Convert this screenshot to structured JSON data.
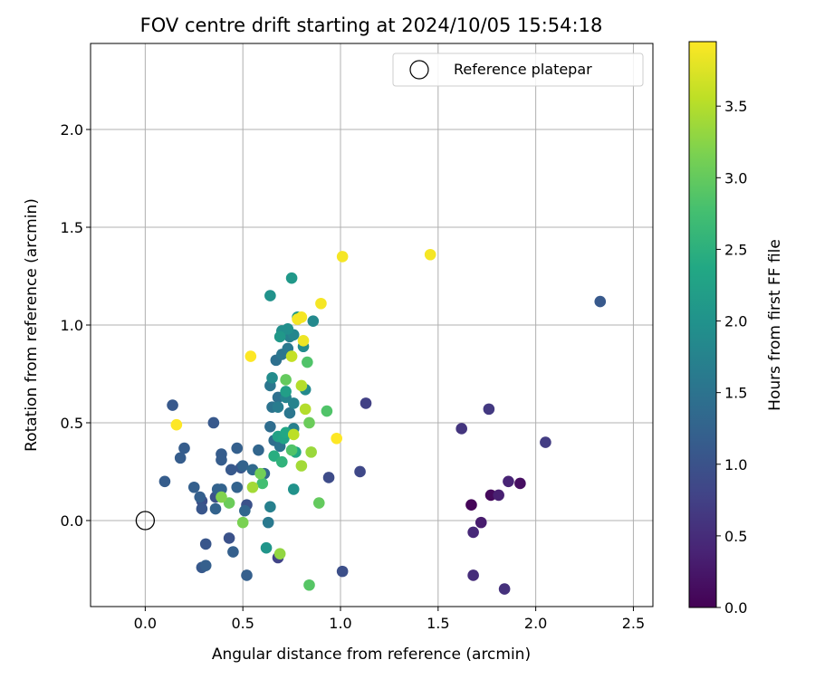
{
  "chart_data": {
    "type": "scatter",
    "title": "FOV centre drift starting at 2024/10/05 15:54:18",
    "xlabel": "Angular distance from reference (arcmin)",
    "ylabel": "Rotation from reference (arcmin)",
    "xlim": [
      -0.28,
      2.6
    ],
    "ylim": [
      -0.44,
      2.44
    ],
    "x_ticks": [
      0.0,
      0.5,
      1.0,
      1.5,
      2.0,
      2.5
    ],
    "x_tick_labels": [
      "0.0",
      "0.5",
      "1.0",
      "1.5",
      "2.0",
      "2.5"
    ],
    "y_ticks": [
      0.0,
      0.5,
      1.0,
      1.5,
      2.0
    ],
    "y_tick_labels": [
      "0.0",
      "0.5",
      "1.0",
      "1.5",
      "2.0"
    ],
    "grid": true,
    "legend": {
      "placement": "top-right",
      "entries": [
        {
          "label": "Reference platepar",
          "marker": "open-circle"
        }
      ]
    },
    "reference_point": {
      "x": 0.0,
      "y": 0.0
    },
    "colorbar": {
      "label": "Hours from first FF file",
      "colormap": "viridis",
      "range": [
        0.0,
        3.95
      ],
      "ticks": [
        0.0,
        0.5,
        1.0,
        1.5,
        2.0,
        2.5,
        3.0,
        3.5
      ],
      "tick_labels": [
        "0.0",
        "0.5",
        "1.0",
        "1.5",
        "2.0",
        "2.5",
        "3.0",
        "3.5"
      ]
    },
    "points": [
      {
        "x": 1.67,
        "y": 0.08,
        "c": 0.05
      },
      {
        "x": 1.77,
        "y": 0.13,
        "c": 0.1
      },
      {
        "x": 1.92,
        "y": 0.19,
        "c": 0.15
      },
      {
        "x": 1.72,
        "y": -0.01,
        "c": 0.3
      },
      {
        "x": 1.81,
        "y": 0.13,
        "c": 0.35
      },
      {
        "x": 1.86,
        "y": 0.2,
        "c": 0.4
      },
      {
        "x": 1.68,
        "y": -0.06,
        "c": 0.45
      },
      {
        "x": 1.68,
        "y": -0.28,
        "c": 0.5
      },
      {
        "x": 1.84,
        "y": -0.35,
        "c": 0.55
      },
      {
        "x": 1.62,
        "y": 0.47,
        "c": 0.6
      },
      {
        "x": 1.76,
        "y": 0.57,
        "c": 0.65
      },
      {
        "x": 2.05,
        "y": 0.4,
        "c": 0.7
      },
      {
        "x": 1.13,
        "y": 0.6,
        "c": 0.75
      },
      {
        "x": 0.68,
        "y": -0.19,
        "c": 0.8
      },
      {
        "x": 1.1,
        "y": 0.25,
        "c": 0.85
      },
      {
        "x": 0.94,
        "y": 0.22,
        "c": 0.9
      },
      {
        "x": 1.01,
        "y": -0.26,
        "c": 0.95
      },
      {
        "x": 0.29,
        "y": 0.1,
        "c": 0.95
      },
      {
        "x": 0.36,
        "y": 0.12,
        "c": 1.0
      },
      {
        "x": 0.43,
        "y": -0.09,
        "c": 1.0
      },
      {
        "x": 0.52,
        "y": 0.08,
        "c": 1.0
      },
      {
        "x": 0.49,
        "y": 0.27,
        "c": 1.05
      },
      {
        "x": 0.31,
        "y": -0.12,
        "c": 1.05
      },
      {
        "x": 0.29,
        "y": 0.06,
        "c": 1.05
      },
      {
        "x": 2.33,
        "y": 1.12,
        "c": 1.1
      },
      {
        "x": 0.44,
        "y": 0.26,
        "c": 1.1
      },
      {
        "x": 0.29,
        "y": -0.24,
        "c": 1.1
      },
      {
        "x": 0.14,
        "y": 0.59,
        "c": 1.1
      },
      {
        "x": 0.35,
        "y": 0.5,
        "c": 1.1
      },
      {
        "x": 0.1,
        "y": 0.2,
        "c": 1.15
      },
      {
        "x": 0.2,
        "y": 0.37,
        "c": 1.15
      },
      {
        "x": 0.18,
        "y": 0.32,
        "c": 1.15
      },
      {
        "x": 0.39,
        "y": 0.34,
        "c": 1.15
      },
      {
        "x": 0.39,
        "y": 0.31,
        "c": 1.15
      },
      {
        "x": 0.47,
        "y": 0.37,
        "c": 1.2
      },
      {
        "x": 0.45,
        "y": -0.16,
        "c": 1.2
      },
      {
        "x": 0.31,
        "y": -0.23,
        "c": 1.2
      },
      {
        "x": 0.52,
        "y": -0.28,
        "c": 1.2
      },
      {
        "x": 0.25,
        "y": 0.17,
        "c": 1.2
      },
      {
        "x": 0.28,
        "y": 0.12,
        "c": 1.2
      },
      {
        "x": 0.37,
        "y": 0.16,
        "c": 1.25
      },
      {
        "x": 0.39,
        "y": 0.16,
        "c": 1.25
      },
      {
        "x": 0.36,
        "y": 0.06,
        "c": 1.25
      },
      {
        "x": 0.47,
        "y": 0.17,
        "c": 1.25
      },
      {
        "x": 0.5,
        "y": 0.28,
        "c": 1.25
      },
      {
        "x": 0.51,
        "y": 0.05,
        "c": 1.3
      },
      {
        "x": 0.58,
        "y": 0.36,
        "c": 1.3
      },
      {
        "x": 0.61,
        "y": 0.24,
        "c": 1.3
      },
      {
        "x": 0.55,
        "y": 0.26,
        "c": 1.35
      },
      {
        "x": 0.64,
        "y": 0.48,
        "c": 1.4
      },
      {
        "x": 0.66,
        "y": 0.41,
        "c": 1.4
      },
      {
        "x": 0.68,
        "y": 0.63,
        "c": 1.45
      },
      {
        "x": 0.67,
        "y": 0.82,
        "c": 1.45
      },
      {
        "x": 0.69,
        "y": 0.38,
        "c": 1.5
      },
      {
        "x": 0.65,
        "y": 0.58,
        "c": 1.5
      },
      {
        "x": 0.7,
        "y": 0.85,
        "c": 1.55
      },
      {
        "x": 0.74,
        "y": 0.55,
        "c": 1.55
      },
      {
        "x": 0.64,
        "y": 0.69,
        "c": 1.55
      },
      {
        "x": 0.63,
        "y": -0.01,
        "c": 1.6
      },
      {
        "x": 0.73,
        "y": 0.88,
        "c": 1.6
      },
      {
        "x": 0.68,
        "y": 0.58,
        "c": 1.65
      },
      {
        "x": 0.74,
        "y": 0.94,
        "c": 1.7
      },
      {
        "x": 0.64,
        "y": 0.07,
        "c": 1.7
      },
      {
        "x": 0.76,
        "y": 0.47,
        "c": 1.7
      },
      {
        "x": 0.72,
        "y": 0.63,
        "c": 1.75
      },
      {
        "x": 0.76,
        "y": 0.6,
        "c": 1.75
      },
      {
        "x": 0.76,
        "y": 0.95,
        "c": 1.8
      },
      {
        "x": 0.82,
        "y": 0.67,
        "c": 1.85
      },
      {
        "x": 0.86,
        "y": 1.02,
        "c": 1.85
      },
      {
        "x": 0.65,
        "y": 0.73,
        "c": 1.9
      },
      {
        "x": 0.81,
        "y": 0.89,
        "c": 1.9
      },
      {
        "x": 0.73,
        "y": 0.98,
        "c": 1.95
      },
      {
        "x": 0.7,
        "y": 0.97,
        "c": 1.95
      },
      {
        "x": 0.76,
        "y": 0.16,
        "c": 2.0
      },
      {
        "x": 0.64,
        "y": 1.15,
        "c": 2.0
      },
      {
        "x": 0.62,
        "y": -0.14,
        "c": 2.05
      },
      {
        "x": 0.69,
        "y": 0.94,
        "c": 2.1
      },
      {
        "x": 0.75,
        "y": 1.24,
        "c": 2.1
      },
      {
        "x": 0.78,
        "y": 1.04,
        "c": 2.15
      },
      {
        "x": 0.72,
        "y": 0.66,
        "c": 2.2
      },
      {
        "x": 0.68,
        "y": 0.43,
        "c": 2.25
      },
      {
        "x": 0.71,
        "y": 0.42,
        "c": 2.3
      },
      {
        "x": 0.77,
        "y": 0.35,
        "c": 2.35
      },
      {
        "x": 0.72,
        "y": 0.45,
        "c": 2.35
      },
      {
        "x": 0.66,
        "y": 0.33,
        "c": 2.45
      },
      {
        "x": 0.7,
        "y": 0.3,
        "c": 2.55
      },
      {
        "x": 0.6,
        "y": 0.19,
        "c": 2.75
      },
      {
        "x": 0.83,
        "y": 0.81,
        "c": 2.85
      },
      {
        "x": 0.93,
        "y": 0.56,
        "c": 2.85
      },
      {
        "x": 0.75,
        "y": 0.36,
        "c": 2.85
      },
      {
        "x": 0.84,
        "y": -0.33,
        "c": 2.9
      },
      {
        "x": 0.72,
        "y": 0.72,
        "c": 3.0
      },
      {
        "x": 0.89,
        "y": 0.09,
        "c": 3.0
      },
      {
        "x": 0.84,
        "y": 0.5,
        "c": 3.05
      },
      {
        "x": 0.43,
        "y": 0.09,
        "c": 3.05
      },
      {
        "x": 0.59,
        "y": 0.24,
        "c": 3.1
      },
      {
        "x": 0.5,
        "y": -0.01,
        "c": 3.15
      },
      {
        "x": 0.39,
        "y": 0.12,
        "c": 3.2
      },
      {
        "x": 0.69,
        "y": -0.17,
        "c": 3.3
      },
      {
        "x": 0.85,
        "y": 0.35,
        "c": 3.35
      },
      {
        "x": 0.8,
        "y": 0.28,
        "c": 3.4
      },
      {
        "x": 0.55,
        "y": 0.17,
        "c": 3.4
      },
      {
        "x": 0.82,
        "y": 0.57,
        "c": 3.5
      },
      {
        "x": 0.8,
        "y": 0.69,
        "c": 3.5
      },
      {
        "x": 0.76,
        "y": 0.44,
        "c": 3.55
      },
      {
        "x": 0.75,
        "y": 0.84,
        "c": 3.6
      },
      {
        "x": 0.81,
        "y": 0.92,
        "c": 3.85
      },
      {
        "x": 0.8,
        "y": 1.04,
        "c": 3.9
      },
      {
        "x": 0.78,
        "y": 1.03,
        "c": 3.9
      },
      {
        "x": 0.9,
        "y": 1.11,
        "c": 3.9
      },
      {
        "x": 1.01,
        "y": 1.35,
        "c": 3.9
      },
      {
        "x": 1.46,
        "y": 1.36,
        "c": 3.9
      },
      {
        "x": 0.54,
        "y": 0.84,
        "c": 3.95
      },
      {
        "x": 0.98,
        "y": 0.42,
        "c": 3.95
      },
      {
        "x": 0.16,
        "y": 0.49,
        "c": 3.95
      }
    ]
  }
}
